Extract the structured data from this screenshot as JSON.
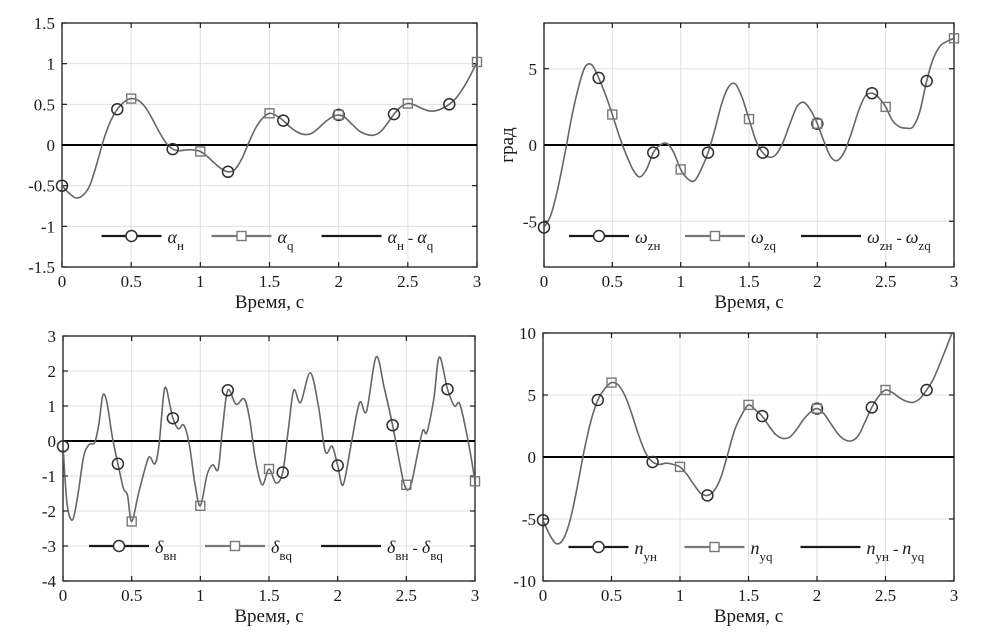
{
  "colors": {
    "background": "#ffffff",
    "curve": "#666666",
    "marker_circle": "#2e2e2e",
    "marker_square": "#787878",
    "axis": "#1a1a1a",
    "grid": "#e0e0e0",
    "zero_line": "#000000",
    "legend_line_dark": "#1a1a1a",
    "legend_line_gray": "#787878"
  },
  "chart_data": [
    {
      "type": "line",
      "title": "",
      "xlabel": "Время, с",
      "ylabel": "",
      "xlim": [
        0,
        3
      ],
      "ylim": [
        -1.5,
        1.5
      ],
      "xticks": [
        0,
        0.5,
        1,
        1.5,
        2,
        2.5,
        3
      ],
      "xtick_labels": [
        "0",
        "0.5",
        "1",
        "1.5",
        "2",
        "2.5",
        "3"
      ],
      "yticks": [
        -1.5,
        -1,
        -0.5,
        0,
        0.5,
        1,
        1.5
      ],
      "ytick_labels": [
        "-1.5",
        "-1",
        "-0.5",
        "0",
        "0.5",
        "1",
        "1.5"
      ],
      "grid": true,
      "legend_position": "inside-bottom",
      "series": [
        {
          "name": "αн",
          "marker": "circle",
          "x": [
            0,
            0.4,
            0.8,
            1.2,
            1.6,
            2.0,
            2.4,
            2.8
          ],
          "y": [
            -0.5,
            0.44,
            -0.05,
            -0.33,
            0.3,
            0.37,
            0.38,
            0.5
          ],
          "legend": [
            {
              "text": "α",
              "kind": "main"
            },
            {
              "text": "н",
              "kind": "sub"
            }
          ]
        },
        {
          "name": "αq",
          "marker": "square",
          "x": [
            0.5,
            1.0,
            1.5,
            2.0,
            2.5,
            3.0
          ],
          "y": [
            0.57,
            -0.08,
            0.39,
            0.37,
            0.51,
            1.02
          ],
          "legend": [
            {
              "text": "α",
              "kind": "main"
            },
            {
              "text": "q",
              "kind": "sub"
            }
          ]
        },
        {
          "name": "αн - αq",
          "marker": "none",
          "line": "flat-zero",
          "x": [
            0,
            3
          ],
          "y": [
            0,
            0
          ],
          "legend": [
            {
              "text": "α",
              "kind": "main"
            },
            {
              "text": "н",
              "kind": "sub"
            },
            {
              "text": " - ",
              "kind": "sep"
            },
            {
              "text": "α",
              "kind": "main"
            },
            {
              "text": "q",
              "kind": "sub"
            }
          ]
        }
      ],
      "response_curve": {
        "x": [
          0,
          0.05,
          0.1,
          0.15,
          0.2,
          0.25,
          0.3,
          0.35,
          0.4,
          0.45,
          0.5,
          0.55,
          0.6,
          0.65,
          0.7,
          0.75,
          0.8,
          0.85,
          0.9,
          0.95,
          1,
          1.05,
          1.1,
          1.15,
          1.2,
          1.25,
          1.3,
          1.35,
          1.4,
          1.45,
          1.5,
          1.55,
          1.6,
          1.65,
          1.7,
          1.75,
          1.8,
          1.85,
          1.9,
          1.95,
          2,
          2.05,
          2.1,
          2.15,
          2.2,
          2.25,
          2.3,
          2.35,
          2.4,
          2.45,
          2.5,
          2.55,
          2.6,
          2.65,
          2.7,
          2.75,
          2.8,
          2.85,
          2.9,
          2.95,
          3
        ],
        "y": [
          -0.5,
          -0.59,
          -0.65,
          -0.62,
          -0.5,
          -0.24,
          0.06,
          0.29,
          0.44,
          0.53,
          0.57,
          0.55,
          0.47,
          0.33,
          0.17,
          0.03,
          -0.05,
          -0.07,
          -0.06,
          -0.06,
          -0.08,
          -0.14,
          -0.22,
          -0.29,
          -0.33,
          -0.3,
          -0.17,
          0.03,
          0.21,
          0.33,
          0.39,
          0.36,
          0.3,
          0.22,
          0.16,
          0.13,
          0.14,
          0.2,
          0.28,
          0.34,
          0.37,
          0.33,
          0.25,
          0.17,
          0.13,
          0.12,
          0.16,
          0.26,
          0.38,
          0.47,
          0.51,
          0.49,
          0.45,
          0.42,
          0.42,
          0.45,
          0.5,
          0.58,
          0.7,
          0.85,
          1.02
        ]
      }
    },
    {
      "type": "line",
      "title": "",
      "xlabel": "Время, с",
      "ylabel": "град",
      "xlim": [
        0,
        3
      ],
      "ylim": [
        -8,
        8
      ],
      "xticks": [
        0,
        0.5,
        1,
        1.5,
        2,
        2.5,
        3
      ],
      "xtick_labels": [
        "0",
        "0.5",
        "1",
        "1.5",
        "2",
        "2.5",
        "3"
      ],
      "yticks": [
        -5,
        0,
        5
      ],
      "ytick_labels": [
        "-5",
        "0",
        "5"
      ],
      "grid": true,
      "legend_position": "inside-bottom",
      "series": [
        {
          "name": "ωzн",
          "marker": "circle",
          "x": [
            0,
            0.4,
            0.8,
            1.2,
            1.6,
            2.0,
            2.4,
            2.8
          ],
          "y": [
            -5.4,
            4.4,
            -0.5,
            -0.5,
            -0.5,
            1.4,
            3.4,
            4.2
          ],
          "legend": [
            {
              "text": "ω",
              "kind": "main"
            },
            {
              "text": "zн",
              "kind": "sub"
            }
          ]
        },
        {
          "name": "ωzq",
          "marker": "square",
          "x": [
            0.5,
            1.0,
            1.5,
            2.0,
            2.5,
            3.0
          ],
          "y": [
            2.0,
            -1.6,
            1.7,
            1.4,
            2.5,
            7.0
          ],
          "legend": [
            {
              "text": "ω",
              "kind": "main"
            },
            {
              "text": "zq",
              "kind": "sub"
            }
          ]
        },
        {
          "name": "ωzн - ωzq",
          "marker": "none",
          "line": "flat-zero",
          "x": [
            0,
            3
          ],
          "y": [
            0,
            0
          ],
          "legend": [
            {
              "text": "ω",
              "kind": "main"
            },
            {
              "text": "zн",
              "kind": "sub"
            },
            {
              "text": " - ",
              "kind": "sep"
            },
            {
              "text": "ω",
              "kind": "main"
            },
            {
              "text": "zq",
              "kind": "sub"
            }
          ]
        }
      ],
      "response_curve": {
        "x": [
          0,
          0.05,
          0.1,
          0.15,
          0.2,
          0.25,
          0.3,
          0.35,
          0.4,
          0.45,
          0.5,
          0.55,
          0.6,
          0.65,
          0.7,
          0.75,
          0.8,
          0.85,
          0.9,
          0.95,
          1,
          1.05,
          1.1,
          1.15,
          1.2,
          1.25,
          1.3,
          1.35,
          1.4,
          1.45,
          1.5,
          1.55,
          1.6,
          1.65,
          1.7,
          1.75,
          1.8,
          1.85,
          1.9,
          1.95,
          2,
          2.05,
          2.1,
          2.15,
          2.2,
          2.25,
          2.3,
          2.35,
          2.4,
          2.45,
          2.5,
          2.55,
          2.6,
          2.65,
          2.7,
          2.75,
          2.8,
          2.85,
          2.9,
          2.95,
          3
        ],
        "y": [
          -5.4,
          -4.6,
          -2.9,
          -0.7,
          1.7,
          3.7,
          5.1,
          5.25,
          4.4,
          3.3,
          2,
          0.6,
          -0.6,
          -1.6,
          -2.1,
          -1.6,
          -0.5,
          0,
          0.1,
          -0.5,
          -1.6,
          -2.2,
          -2.35,
          -1.6,
          -0.5,
          1,
          2.7,
          3.8,
          4,
          3.1,
          1.7,
          0.3,
          -0.5,
          -0.8,
          -0.6,
          0.2,
          1.4,
          2.5,
          2.8,
          2.3,
          1.4,
          0.2,
          -0.8,
          -1,
          -0.4,
          0.8,
          2.2,
          3.2,
          3.4,
          3.1,
          2.5,
          1.6,
          1.2,
          1.1,
          1.2,
          2.2,
          4.2,
          5.7,
          6.5,
          6.8,
          7
        ]
      }
    },
    {
      "type": "line",
      "title": "",
      "xlabel": "Время, с",
      "ylabel": "",
      "xlim": [
        0,
        3
      ],
      "ylim": [
        -4,
        3
      ],
      "xticks": [
        0,
        0.5,
        1,
        1.5,
        2,
        2.5,
        3
      ],
      "xtick_labels": [
        "0",
        "0.5",
        "1",
        "1.5",
        "2",
        "2.5",
        "3"
      ],
      "yticks": [
        -4,
        -3,
        -2,
        -1,
        0,
        1,
        2,
        3
      ],
      "ytick_labels": [
        "-4",
        "-3",
        "-2",
        "-1",
        "0",
        "1",
        "2",
        "3"
      ],
      "grid": true,
      "legend_position": "inside-bottom",
      "series": [
        {
          "name": "δвн",
          "marker": "circle",
          "x": [
            0,
            0.4,
            0.8,
            1.2,
            1.6,
            2.0,
            2.4,
            2.8
          ],
          "y": [
            -0.15,
            -0.65,
            0.65,
            1.45,
            -0.9,
            -0.7,
            0.45,
            1.48
          ],
          "legend": [
            {
              "text": "δ",
              "kind": "main"
            },
            {
              "text": "вн",
              "kind": "sub"
            }
          ]
        },
        {
          "name": "δвq",
          "marker": "square",
          "x": [
            0.5,
            1.0,
            1.5,
            2.5,
            3.0
          ],
          "y": [
            -2.3,
            -1.85,
            -0.8,
            -1.25,
            -1.15
          ],
          "legend": [
            {
              "text": "δ",
              "kind": "main"
            },
            {
              "text": "вq",
              "kind": "sub"
            }
          ]
        },
        {
          "name": "δвн - δвq",
          "marker": "none",
          "line": "flat-zero",
          "x": [
            0,
            3
          ],
          "y": [
            0,
            0
          ],
          "legend": [
            {
              "text": "δ",
              "kind": "main"
            },
            {
              "text": "вн",
              "kind": "sub"
            },
            {
              "text": " - ",
              "kind": "sep"
            },
            {
              "text": "δ",
              "kind": "main"
            },
            {
              "text": "вq",
              "kind": "sub"
            }
          ]
        }
      ],
      "response_curve": {
        "x": [
          0,
          0.03,
          0.07,
          0.11,
          0.15,
          0.19,
          0.23,
          0.26,
          0.29,
          0.32,
          0.36,
          0.4,
          0.44,
          0.47,
          0.5,
          0.55,
          0.6,
          0.63,
          0.67,
          0.7,
          0.74,
          0.78,
          0.8,
          0.84,
          0.88,
          0.92,
          0.96,
          1,
          1.05,
          1.09,
          1.13,
          1.16,
          1.2,
          1.26,
          1.32,
          1.36,
          1.4,
          1.45,
          1.5,
          1.55,
          1.6,
          1.64,
          1.68,
          1.73,
          1.8,
          1.86,
          1.91,
          1.96,
          2,
          2.04,
          2.1,
          2.16,
          2.21,
          2.28,
          2.34,
          2.4,
          2.45,
          2.49,
          2.53,
          2.58,
          2.62,
          2.65,
          2.7,
          2.74,
          2.8,
          2.85,
          2.89,
          2.95,
          3
        ],
        "y": [
          -0.15,
          -1.8,
          -2.25,
          -1.5,
          -0.45,
          -0.1,
          -0.05,
          0.45,
          1.3,
          1.1,
          0.1,
          -0.65,
          -1.35,
          -1.55,
          -2.3,
          -1.5,
          -0.75,
          -0.45,
          -0.65,
          -0.1,
          1.5,
          1,
          0.65,
          0.35,
          0.45,
          -0.1,
          -1.2,
          -1.85,
          -0.95,
          -0.68,
          -0.8,
          0.3,
          1.45,
          1.05,
          1.2,
          0.6,
          -0.5,
          -1.25,
          -0.8,
          -1.2,
          -0.9,
          0.3,
          1.45,
          1.1,
          1.95,
          1,
          -0.3,
          -0.15,
          -0.7,
          -1.25,
          -0.05,
          1.1,
          0.85,
          2.4,
          1.5,
          0.45,
          -0.6,
          -1.3,
          -1.3,
          -0.4,
          0.3,
          0.25,
          1.2,
          2.4,
          1.48,
          1,
          1.05,
          0,
          -1.15
        ]
      }
    },
    {
      "type": "line",
      "title": "",
      "xlabel": "Время, с",
      "ylabel": "",
      "xlim": [
        0,
        3
      ],
      "ylim": [
        -10,
        10
      ],
      "xticks": [
        0,
        0.5,
        1,
        1.5,
        2,
        2.5,
        3
      ],
      "xtick_labels": [
        "0",
        "0.5",
        "1",
        "1.5",
        "2",
        "2.5",
        "3"
      ],
      "yticks": [
        -10,
        -5,
        0,
        5,
        10
      ],
      "ytick_labels": [
        "-10",
        "-5",
        "0",
        "5",
        "10"
      ],
      "grid": true,
      "legend_position": "inside-bottom",
      "series": [
        {
          "name": "nун",
          "marker": "circle",
          "x": [
            0,
            0.4,
            0.8,
            1.2,
            1.6,
            2.0,
            2.4,
            2.8
          ],
          "y": [
            -5.1,
            4.6,
            -0.4,
            -3.1,
            3.3,
            3.9,
            4.0,
            5.4
          ],
          "legend": [
            {
              "text": "n",
              "kind": "main"
            },
            {
              "text": "ун",
              "kind": "sub"
            }
          ]
        },
        {
          "name": "nуq",
          "marker": "square",
          "x": [
            0.5,
            1.0,
            1.5,
            2.0,
            2.5
          ],
          "y": [
            6.0,
            -0.8,
            4.2,
            3.9,
            5.4
          ],
          "legend": [
            {
              "text": "n",
              "kind": "main"
            },
            {
              "text": "уq",
              "kind": "sub"
            }
          ]
        },
        {
          "name": "nун - nуq",
          "marker": "none",
          "line": "flat-zero",
          "x": [
            0,
            3
          ],
          "y": [
            0,
            0
          ],
          "legend": [
            {
              "text": "n",
              "kind": "main"
            },
            {
              "text": "ун",
              "kind": "sub"
            },
            {
              "text": " - ",
              "kind": "sep"
            },
            {
              "text": "n",
              "kind": "main"
            },
            {
              "text": "уq",
              "kind": "sub"
            }
          ]
        }
      ],
      "response_curve": {
        "x": [
          0,
          0.05,
          0.1,
          0.15,
          0.2,
          0.25,
          0.3,
          0.35,
          0.4,
          0.45,
          0.5,
          0.55,
          0.6,
          0.65,
          0.7,
          0.75,
          0.8,
          0.85,
          0.9,
          0.95,
          1,
          1.05,
          1.1,
          1.15,
          1.2,
          1.25,
          1.3,
          1.35,
          1.4,
          1.45,
          1.5,
          1.55,
          1.6,
          1.65,
          1.7,
          1.75,
          1.8,
          1.85,
          1.9,
          1.95,
          2,
          2.05,
          2.1,
          2.15,
          2.2,
          2.25,
          2.3,
          2.35,
          2.4,
          2.45,
          2.5,
          2.55,
          2.6,
          2.65,
          2.7,
          2.75,
          2.8,
          2.85,
          2.9,
          2.95,
          3
        ],
        "y": [
          -5.1,
          -6.3,
          -7,
          -6.6,
          -5,
          -2.4,
          0.5,
          2.9,
          4.6,
          5.5,
          6,
          5.8,
          4.9,
          3.4,
          1.7,
          0.3,
          -0.4,
          -0.6,
          -0.5,
          -0.6,
          -0.8,
          -1.4,
          -2.2,
          -2.9,
          -3.1,
          -2.7,
          -1.6,
          0.3,
          2.2,
          3.4,
          4.2,
          3.8,
          3.3,
          2.5,
          1.8,
          1.5,
          1.6,
          2.2,
          3,
          3.6,
          3.9,
          3.5,
          2.7,
          1.9,
          1.4,
          1.3,
          1.7,
          2.8,
          4,
          4.9,
          5.4,
          5.2,
          4.8,
          4.5,
          4.4,
          4.7,
          5.4,
          6.3,
          7.6,
          9,
          10.4
        ]
      }
    }
  ]
}
